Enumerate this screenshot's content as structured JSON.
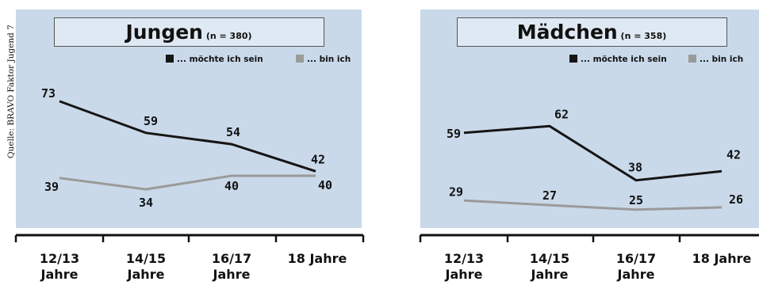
{
  "source_label": "Quelle: BRAVO Faktor Jugend 7",
  "colors": {
    "background": "#c9d9ea",
    "title_box": "#dfe9f3",
    "series_dark": "#151515",
    "series_light": "#9a9a9a",
    "axis": "#111111"
  },
  "chart_data": [
    {
      "type": "line",
      "title": "Jungen",
      "subtitle": "(n = 380)",
      "categories": [
        [
          "12/13",
          "Jahre"
        ],
        [
          "14/15",
          "Jahre"
        ],
        [
          "16/17",
          "Jahre"
        ],
        [
          "18 Jahre"
        ]
      ],
      "series": [
        {
          "name": "... möchte ich sein",
          "color": "#151515",
          "values": [
            73,
            59,
            54,
            42
          ]
        },
        {
          "name": "... bin ich",
          "color": "#9a9a9a",
          "values": [
            39,
            34,
            40,
            40
          ]
        }
      ],
      "legend": "top-right",
      "grid": false
    },
    {
      "type": "line",
      "title": "Mädchen",
      "subtitle": "(n = 358)",
      "categories": [
        [
          "12/13",
          "Jahre"
        ],
        [
          "14/15",
          "Jahre"
        ],
        [
          "16/17",
          "Jahre"
        ],
        [
          "18 Jahre"
        ]
      ],
      "series": [
        {
          "name": "... möchte ich sein",
          "color": "#151515",
          "values": [
            59,
            62,
            38,
            42
          ]
        },
        {
          "name": "... bin ich",
          "color": "#9a9a9a",
          "values": [
            29,
            27,
            25,
            26
          ]
        }
      ],
      "legend": "top-right",
      "grid": false
    }
  ]
}
